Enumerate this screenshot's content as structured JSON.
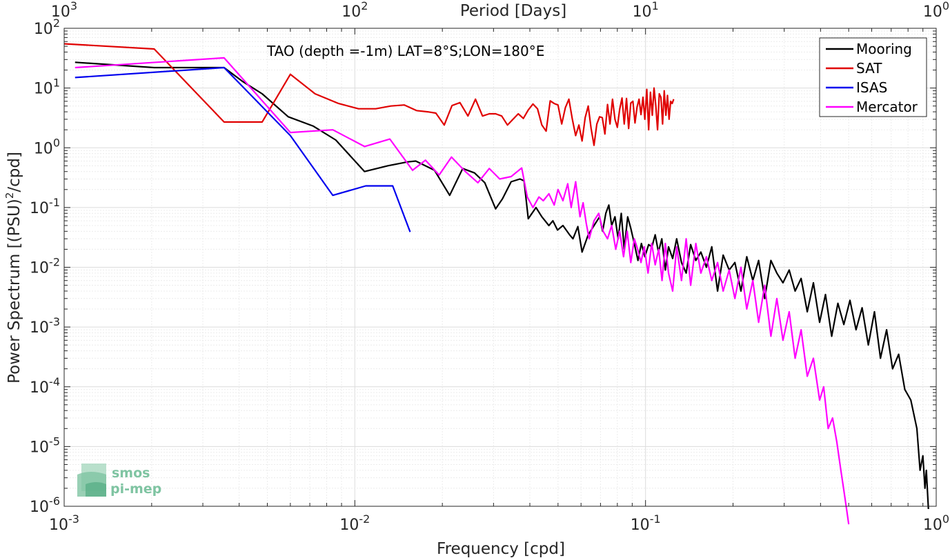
{
  "chart_data": {
    "type": "line",
    "title": "",
    "annotation": "TAO (depth =-1m) LAT=8°S;LON=180°E",
    "xlabel": "Frequency [cpd]",
    "ylabel_main": "Power Spectrum [(PSU)",
    "ylabel_exp": "2",
    "ylabel_tail": "/cpd]",
    "top_xlabel": "Period [Days]",
    "xscale": "log",
    "yscale": "log",
    "xlim": [
      0.001,
      1
    ],
    "ylim": [
      1e-06,
      100
    ],
    "grid": true,
    "legend_position": "top-right",
    "x_ticks": [
      {
        "value": 0.001,
        "base": "10",
        "exp": "-3"
      },
      {
        "value": 0.01,
        "base": "10",
        "exp": "-2"
      },
      {
        "value": 0.1,
        "base": "10",
        "exp": "-1"
      },
      {
        "value": 1,
        "base": "10",
        "exp": "0"
      }
    ],
    "top_ticks": [
      {
        "value": 0.001,
        "base": "10",
        "exp": "3"
      },
      {
        "value": 0.01,
        "base": "10",
        "exp": "2"
      },
      {
        "value": 0.1,
        "base": "10",
        "exp": "1"
      },
      {
        "value": 1,
        "base": "10",
        "exp": "0"
      }
    ],
    "y_ticks": [
      {
        "value": 1e-06,
        "base": "10",
        "exp": "-6"
      },
      {
        "value": 1e-05,
        "base": "10",
        "exp": "-5"
      },
      {
        "value": 0.0001,
        "base": "10",
        "exp": "-4"
      },
      {
        "value": 0.001,
        "base": "10",
        "exp": "-3"
      },
      {
        "value": 0.01,
        "base": "10",
        "exp": "-2"
      },
      {
        "value": 0.1,
        "base": "10",
        "exp": "-1"
      },
      {
        "value": 1,
        "base": "10",
        "exp": "0"
      },
      {
        "value": 10,
        "base": "10",
        "exp": "1"
      },
      {
        "value": 100,
        "base": "10",
        "exp": "2"
      }
    ],
    "series": [
      {
        "name": "Mooring",
        "color": "#000000",
        "x": [
          0.00109,
          0.00204,
          0.00355,
          0.0041,
          0.0048,
          0.0059,
          0.0072,
          0.0086,
          0.0108,
          0.013,
          0.0152,
          0.0162,
          0.0172,
          0.0188,
          0.0212,
          0.0235,
          0.0258,
          0.028,
          0.0305,
          0.0322,
          0.0345,
          0.037,
          0.0382,
          0.0395,
          0.042,
          0.044,
          0.0465,
          0.048,
          0.0498,
          0.052,
          0.0548,
          0.0563,
          0.0585,
          0.0605,
          0.0635,
          0.0665,
          0.0695,
          0.0712,
          0.073,
          0.0748,
          0.0765,
          0.0785,
          0.0805,
          0.0825,
          0.0845,
          0.0868,
          0.089,
          0.0915,
          0.0942,
          0.0968,
          0.0995,
          0.1025,
          0.1052,
          0.108,
          0.1108,
          0.1138,
          0.117,
          0.12,
          0.124,
          0.128,
          0.133,
          0.138,
          0.143,
          0.149,
          0.155,
          0.162,
          0.169,
          0.177,
          0.185,
          0.194,
          0.203,
          0.213,
          0.223,
          0.234,
          0.245,
          0.257,
          0.27,
          0.283,
          0.297,
          0.312,
          0.327,
          0.343,
          0.36,
          0.378,
          0.397,
          0.416,
          0.437,
          0.459,
          0.481,
          0.505,
          0.53,
          0.556,
          0.584,
          0.613,
          0.643,
          0.675,
          0.708,
          0.743,
          0.78,
          0.818,
          0.858,
          0.88,
          0.9,
          0.915,
          0.925,
          0.94
        ],
        "y": [
          27,
          22,
          22,
          13,
          8,
          3.3,
          2.3,
          1.35,
          0.4,
          0.5,
          0.58,
          0.6,
          0.52,
          0.42,
          0.16,
          0.45,
          0.38,
          0.26,
          0.095,
          0.14,
          0.27,
          0.3,
          0.28,
          0.065,
          0.1,
          0.07,
          0.05,
          0.06,
          0.042,
          0.05,
          0.035,
          0.03,
          0.048,
          0.018,
          0.035,
          0.05,
          0.07,
          0.04,
          0.08,
          0.11,
          0.05,
          0.07,
          0.03,
          0.08,
          0.02,
          0.07,
          0.045,
          0.025,
          0.013,
          0.025,
          0.015,
          0.024,
          0.022,
          0.035,
          0.018,
          0.03,
          0.009,
          0.022,
          0.014,
          0.03,
          0.012,
          0.008,
          0.024,
          0.013,
          0.018,
          0.01,
          0.022,
          0.004,
          0.016,
          0.009,
          0.012,
          0.004,
          0.015,
          0.006,
          0.013,
          0.003,
          0.013,
          0.008,
          0.0055,
          0.009,
          0.004,
          0.0065,
          0.0018,
          0.0055,
          0.0012,
          0.0035,
          0.0007,
          0.0025,
          0.0011,
          0.0028,
          0.0009,
          0.0021,
          0.0005,
          0.0018,
          0.0003,
          0.0009,
          0.0002,
          0.00035,
          9e-05,
          6e-05,
          2e-05,
          4e-06,
          7e-06,
          2e-06,
          4e-06,
          9e-07
        ]
      },
      {
        "name": "SAT",
        "color": "#e00000",
        "x": [
          0.001,
          0.00204,
          0.00355,
          0.0048,
          0.006,
          0.0073,
          0.0088,
          0.0103,
          0.0118,
          0.0133,
          0.0148,
          0.0163,
          0.0178,
          0.019,
          0.0203,
          0.0216,
          0.023,
          0.0245,
          0.026,
          0.0275,
          0.029,
          0.0305,
          0.032,
          0.0335,
          0.035,
          0.0365,
          0.038,
          0.0395,
          0.041,
          0.0425,
          0.044,
          0.0455,
          0.047,
          0.0485,
          0.05,
          0.0515,
          0.053,
          0.0545,
          0.056,
          0.0575,
          0.059,
          0.0605,
          0.062,
          0.0635,
          0.065,
          0.0665,
          0.068,
          0.0695,
          0.071,
          0.0725,
          0.074,
          0.0755,
          0.077,
          0.0785,
          0.08,
          0.0815,
          0.083,
          0.0845,
          0.086,
          0.0875,
          0.089,
          0.0905,
          0.092,
          0.0935,
          0.095,
          0.0965,
          0.098,
          0.0995,
          0.101,
          0.1025,
          0.104,
          0.1055,
          0.107,
          0.1085,
          0.11,
          0.1115,
          0.113,
          0.1145,
          0.116,
          0.1175,
          0.119,
          0.1205,
          0.122,
          0.1235,
          0.125
        ],
        "y": [
          55,
          45,
          2.7,
          2.7,
          17,
          8,
          5.5,
          4.5,
          4.5,
          5,
          5.2,
          4.2,
          4,
          3.8,
          2.4,
          5.1,
          5.7,
          3.4,
          6.5,
          3.4,
          3.7,
          3.7,
          3.4,
          2.4,
          3,
          3.7,
          3.1,
          4.3,
          5.4,
          4.5,
          2.4,
          1.9,
          6.1,
          5.5,
          5.2,
          2.5,
          4.7,
          6.5,
          3,
          1.6,
          2.4,
          1.3,
          3.2,
          5,
          2.1,
          1.1,
          2.5,
          3.3,
          3.2,
          1.7,
          5.3,
          2.5,
          6.5,
          3,
          2.2,
          4.4,
          6.8,
          2.5,
          6.7,
          2.1,
          5.6,
          6,
          2.6,
          4.8,
          6.5,
          3.6,
          7,
          3,
          9.5,
          2,
          8.5,
          3.5,
          10,
          5,
          2,
          8,
          7,
          2.5,
          9,
          3.5,
          7.5,
          3,
          6,
          5.5,
          6.5
        ]
      },
      {
        "name": "ISAS",
        "color": "#0000ee",
        "x": [
          0.00109,
          0.00355,
          0.006,
          0.0084,
          0.0109,
          0.0135,
          0.0155
        ],
        "y": [
          15,
          22,
          1.6,
          0.16,
          0.23,
          0.23,
          0.039
        ]
      },
      {
        "name": "Mercator",
        "color": "#ff00ff",
        "x": [
          0.00109,
          0.00355,
          0.006,
          0.0084,
          0.0108,
          0.0132,
          0.0158,
          0.0175,
          0.0195,
          0.0215,
          0.024,
          0.0265,
          0.029,
          0.0315,
          0.0345,
          0.0375,
          0.0392,
          0.041,
          0.043,
          0.0445,
          0.0465,
          0.0485,
          0.05,
          0.052,
          0.054,
          0.0555,
          0.0575,
          0.0595,
          0.061,
          0.0625,
          0.064,
          0.0665,
          0.069,
          0.0715,
          0.074,
          0.0765,
          0.079,
          0.0815,
          0.084,
          0.0865,
          0.089,
          0.0915,
          0.094,
          0.0965,
          0.099,
          0.102,
          0.105,
          0.108,
          0.111,
          0.114,
          0.117,
          0.12,
          0.124,
          0.128,
          0.133,
          0.138,
          0.143,
          0.149,
          0.155,
          0.162,
          0.169,
          0.177,
          0.185,
          0.194,
          0.203,
          0.213,
          0.223,
          0.234,
          0.245,
          0.257,
          0.27,
          0.283,
          0.297,
          0.312,
          0.327,
          0.343,
          0.36,
          0.378,
          0.397,
          0.41,
          0.425,
          0.44,
          0.455,
          0.47,
          0.48,
          0.49,
          0.5
        ],
        "y": [
          22,
          32,
          1.8,
          2,
          1.05,
          1.4,
          0.42,
          0.62,
          0.35,
          0.7,
          0.4,
          0.26,
          0.45,
          0.3,
          0.33,
          0.46,
          0.15,
          0.1,
          0.15,
          0.13,
          0.17,
          0.11,
          0.2,
          0.13,
          0.25,
          0.1,
          0.27,
          0.07,
          0.12,
          0.055,
          0.03,
          0.06,
          0.08,
          0.04,
          0.03,
          0.05,
          0.02,
          0.04,
          0.015,
          0.04,
          0.012,
          0.03,
          0.02,
          0.012,
          0.022,
          0.008,
          0.025,
          0.011,
          0.02,
          0.006,
          0.025,
          0.008,
          0.004,
          0.022,
          0.006,
          0.03,
          0.005,
          0.025,
          0.008,
          0.015,
          0.006,
          0.012,
          0.004,
          0.009,
          0.003,
          0.01,
          0.002,
          0.006,
          0.0012,
          0.005,
          0.0007,
          0.003,
          0.0006,
          0.0018,
          0.0003,
          0.0009,
          0.00015,
          0.0003,
          6e-05,
          0.0001,
          2e-05,
          3e-05,
          1.2e-05,
          4e-06,
          2e-06,
          1e-06,
          5e-07
        ]
      }
    ]
  },
  "logo": {
    "line1": "smos",
    "line2": "pi-mep",
    "color": "#7fc4a2"
  }
}
